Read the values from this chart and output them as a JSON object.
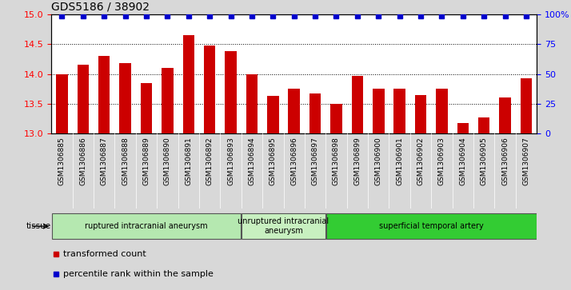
{
  "title": "GDS5186 / 38902",
  "samples": [
    "GSM1306885",
    "GSM1306886",
    "GSM1306887",
    "GSM1306888",
    "GSM1306889",
    "GSM1306890",
    "GSM1306891",
    "GSM1306892",
    "GSM1306893",
    "GSM1306894",
    "GSM1306895",
    "GSM1306896",
    "GSM1306897",
    "GSM1306898",
    "GSM1306899",
    "GSM1306900",
    "GSM1306901",
    "GSM1306902",
    "GSM1306903",
    "GSM1306904",
    "GSM1306905",
    "GSM1306906",
    "GSM1306907"
  ],
  "bar_values": [
    14.0,
    14.15,
    14.3,
    14.18,
    13.85,
    14.1,
    14.65,
    14.48,
    14.38,
    14.0,
    13.63,
    13.75,
    13.67,
    13.5,
    13.97,
    13.75,
    13.75,
    13.65,
    13.75,
    13.18,
    13.27,
    13.6,
    13.93
  ],
  "percentile_values": [
    99,
    99,
    99,
    99,
    99,
    99,
    99,
    99,
    99,
    99,
    99,
    99,
    99,
    99,
    99,
    99,
    99,
    99,
    99,
    99,
    99,
    99,
    99
  ],
  "ylim_left": [
    13.0,
    15.0
  ],
  "ylim_right": [
    0,
    100
  ],
  "yticks_left": [
    13.0,
    13.5,
    14.0,
    14.5,
    15.0
  ],
  "yticks_right": [
    0,
    25,
    50,
    75,
    100
  ],
  "bar_color": "#cc0000",
  "dot_color": "#0000cc",
  "grid_values": [
    13.5,
    14.0,
    14.5
  ],
  "groups": [
    {
      "label": "ruptured intracranial aneurysm",
      "start": 0,
      "end": 9,
      "color": "#b5e8b0"
    },
    {
      "label": "unruptured intracranial\naneurysm",
      "start": 9,
      "end": 13,
      "color": "#c8f0c0"
    },
    {
      "label": "superficial temporal artery",
      "start": 13,
      "end": 23,
      "color": "#33cc33"
    }
  ],
  "tissue_label": "tissue",
  "legend_bar_label": "transformed count",
  "legend_dot_label": "percentile rank within the sample",
  "bg_color": "#d8d8d8",
  "plot_bg_color": "#ffffff",
  "xtick_bg_color": "#d8d8d8"
}
